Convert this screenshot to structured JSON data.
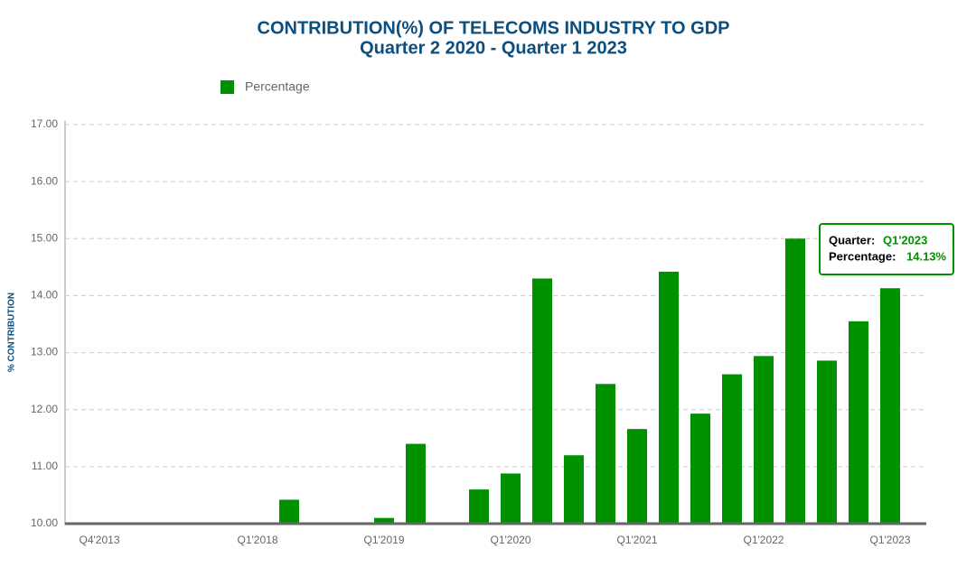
{
  "chart_data": {
    "type": "bar",
    "title": "CONTRIBUTION(%) OF TELECOMS INDUSTRY TO GDP",
    "subtitle": "Quarter 2 2020 - Quarter 1 2023",
    "y_axis_label": "% CONTRIBUTION",
    "categories": [
      "Q4'2013",
      null,
      null,
      null,
      null,
      "Q1'2018",
      null,
      null,
      null,
      "Q1'2019",
      null,
      null,
      null,
      "Q1'2020",
      null,
      null,
      null,
      "Q1'2021",
      null,
      null,
      null,
      "Q1'2022",
      null,
      null,
      null,
      "Q1'2023"
    ],
    "series": [
      {
        "name": "Percentage",
        "color": "#009100",
        "values": [
          null,
          null,
          null,
          null,
          null,
          null,
          10.42,
          null,
          null,
          10.1,
          11.4,
          null,
          10.6,
          10.88,
          14.3,
          11.2,
          12.45,
          11.66,
          14.42,
          11.93,
          12.62,
          12.94,
          15.0,
          12.86,
          13.55,
          14.13
        ]
      }
    ],
    "ylim": [
      10,
      17
    ],
    "yticks": [
      {
        "value": 10,
        "label": "10.00"
      },
      {
        "value": 11,
        "label": "11.00"
      },
      {
        "value": 12,
        "label": "12.00"
      },
      {
        "value": 13,
        "label": "13.00"
      },
      {
        "value": 14,
        "label": "14.00"
      },
      {
        "value": 15,
        "label": "15.00"
      },
      {
        "value": 16,
        "label": "16.00"
      },
      {
        "value": 17,
        "label": "17.00"
      }
    ],
    "grid": true,
    "legend": "top-left",
    "tooltip": {
      "quarter_label": "Quarter:",
      "quarter": "Q1'2023",
      "percentage_label": "Percentage:",
      "percentage": "14.13%"
    }
  }
}
